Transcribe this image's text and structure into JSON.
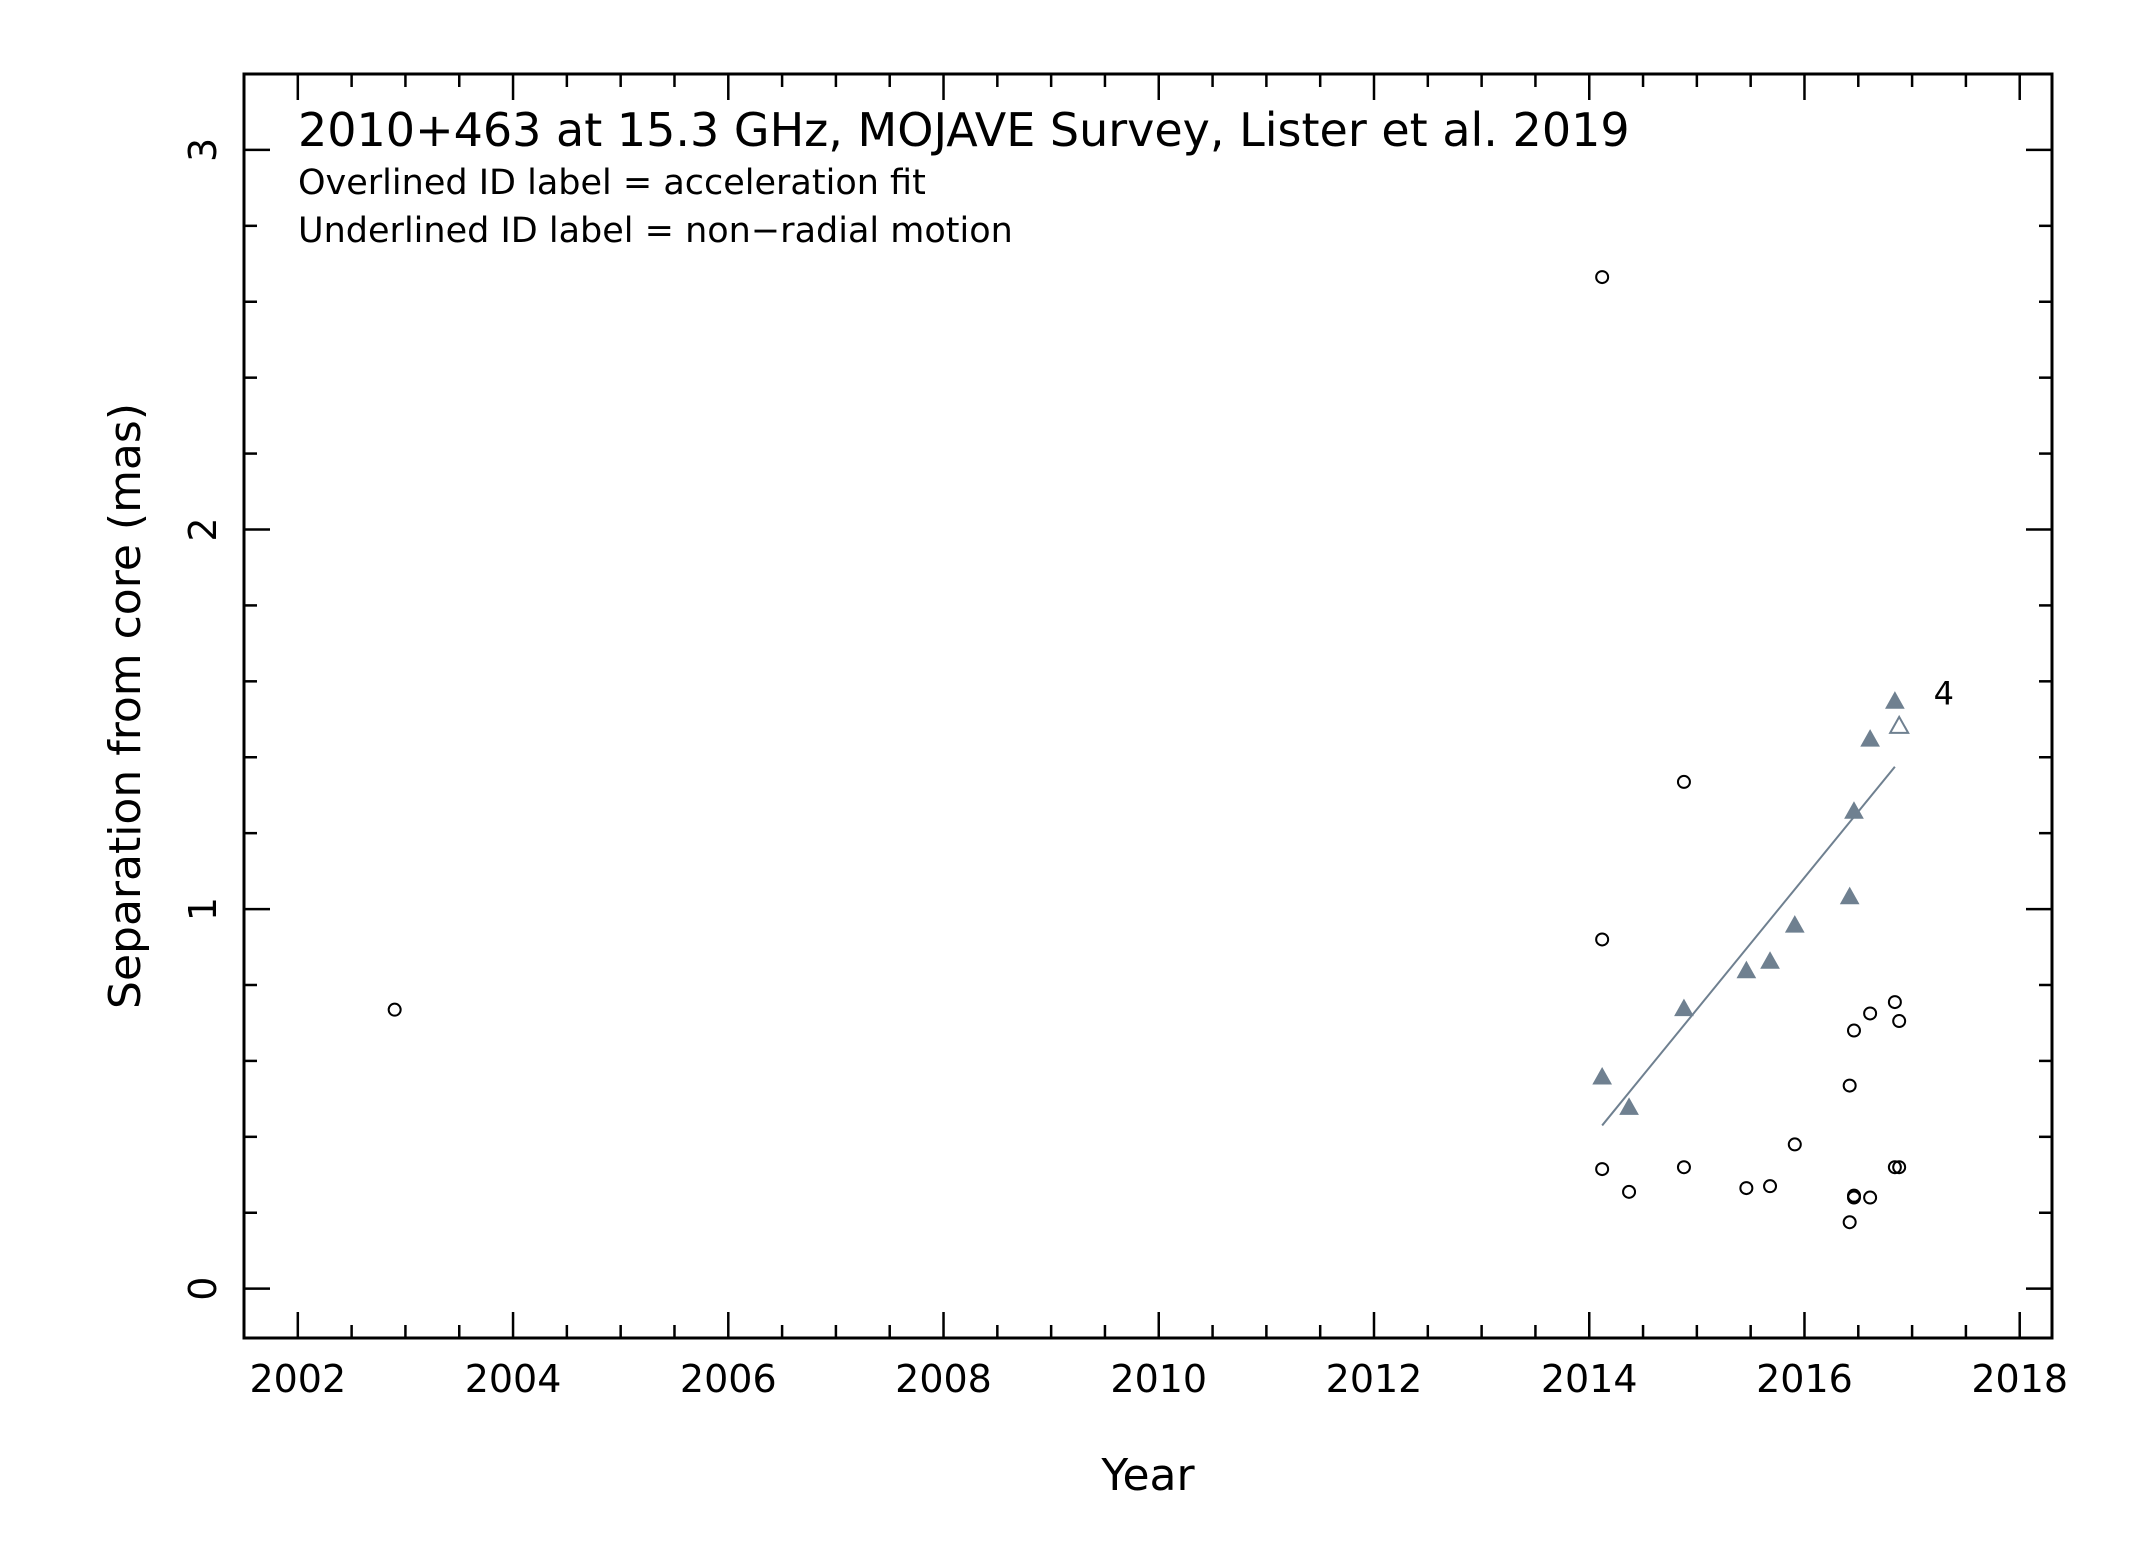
{
  "chart_data": {
    "type": "scatter",
    "title": "2010+463 at 15.3 GHz, MOJAVE Survey, Lister et al. 2019",
    "notes": [
      "Overlined ID label = acceleration fit",
      "Underlined ID label = non−radial motion"
    ],
    "xlabel": "Year",
    "ylabel": "Separation from core (mas)",
    "xlim": [
      2001.5,
      2018.3
    ],
    "ylim": [
      -0.13,
      3.2
    ],
    "xticks": [
      2002,
      2004,
      2006,
      2008,
      2010,
      2012,
      2014,
      2016,
      2018
    ],
    "yticks": [
      0,
      1,
      2,
      3
    ],
    "grid": false,
    "colors": {
      "component": "#6f8090",
      "other": "#000000"
    },
    "series": [
      {
        "name": "4",
        "marker": "filled-triangle",
        "color": "#6f8090",
        "x": [
          2014.12,
          2014.37,
          2014.88,
          2015.46,
          2015.68,
          2015.91,
          2016.42,
          2016.46,
          2016.61,
          2016.84
        ],
        "y": [
          0.555,
          0.475,
          0.735,
          0.835,
          0.86,
          0.955,
          1.03,
          1.255,
          1.445,
          1.545
        ]
      },
      {
        "marker": "open-triangle",
        "color": "#6f8090",
        "x": [
          2016.88
        ],
        "y": [
          1.48
        ]
      },
      {
        "marker": "open-circle",
        "color": "#000000",
        "x": [
          2002.9,
          2014.12,
          2014.12,
          2014.12,
          2014.37,
          2014.88,
          2014.88,
          2015.46,
          2015.68,
          2015.91,
          2016.42,
          2016.42,
          2016.46,
          2016.46,
          2016.46,
          2016.61,
          2016.61,
          2016.84,
          2016.84,
          2016.88,
          2016.88
        ],
        "y": [
          0.735,
          2.665,
          0.92,
          0.315,
          0.255,
          0.32,
          1.335,
          0.265,
          0.27,
          0.38,
          0.535,
          0.175,
          0.68,
          0.245,
          0.24,
          0.725,
          0.24,
          0.755,
          0.32,
          0.705,
          0.32
        ]
      }
    ],
    "fit": {
      "series": "4",
      "color": "#6f8090",
      "x": [
        2014.12,
        2016.84
      ],
      "y": [
        0.43,
        1.375
      ]
    },
    "component_label": {
      "text": "4",
      "x": 2017.2,
      "y": 1.565
    }
  }
}
